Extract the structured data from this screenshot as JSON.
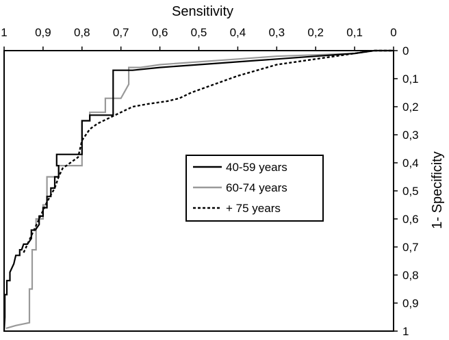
{
  "chart_data": {
    "type": "line",
    "title": "",
    "xlabel": "Sensitivity",
    "ylabel": "1- Specificity",
    "xlim": [
      1,
      0
    ],
    "ylim": [
      0,
      1
    ],
    "x_ticks": [
      "1",
      "0,9",
      "0,8",
      "0,7",
      "0,6",
      "0,5",
      "0,4",
      "0,3",
      "0,2",
      "0,1",
      "0"
    ],
    "y_ticks": [
      "0",
      "0,1",
      "0,2",
      "0,3",
      "0,4",
      "0,5",
      "0,6",
      "0,7",
      "0,8",
      "0,9",
      "1"
    ],
    "x_ticks_position": "top",
    "y_ticks_position": "right",
    "grid": false,
    "legend_position": "center-right",
    "series": [
      {
        "name": "40-59 years",
        "color": "#000000",
        "dash": "solid",
        "points": [
          [
            1.0,
            1.0
          ],
          [
            0.998,
            0.95
          ],
          [
            0.998,
            0.87
          ],
          [
            0.993,
            0.87
          ],
          [
            0.993,
            0.82
          ],
          [
            0.985,
            0.82
          ],
          [
            0.985,
            0.79
          ],
          [
            0.975,
            0.76
          ],
          [
            0.97,
            0.73
          ],
          [
            0.96,
            0.73
          ],
          [
            0.96,
            0.71
          ],
          [
            0.955,
            0.71
          ],
          [
            0.95,
            0.69
          ],
          [
            0.94,
            0.69
          ],
          [
            0.93,
            0.67
          ],
          [
            0.93,
            0.64
          ],
          [
            0.92,
            0.64
          ],
          [
            0.91,
            0.62
          ],
          [
            0.91,
            0.59
          ],
          [
            0.9,
            0.59
          ],
          [
            0.9,
            0.56
          ],
          [
            0.89,
            0.56
          ],
          [
            0.89,
            0.52
          ],
          [
            0.88,
            0.52
          ],
          [
            0.88,
            0.49
          ],
          [
            0.87,
            0.49
          ],
          [
            0.87,
            0.45
          ],
          [
            0.86,
            0.45
          ],
          [
            0.86,
            0.41
          ],
          [
            0.865,
            0.41
          ],
          [
            0.865,
            0.37
          ],
          [
            0.8,
            0.37
          ],
          [
            0.8,
            0.25
          ],
          [
            0.78,
            0.25
          ],
          [
            0.78,
            0.23
          ],
          [
            0.72,
            0.23
          ],
          [
            0.72,
            0.07
          ],
          [
            0.67,
            0.07
          ],
          [
            0.6,
            0.06
          ],
          [
            0.5,
            0.05
          ],
          [
            0.4,
            0.04
          ],
          [
            0.3,
            0.03
          ],
          [
            0.2,
            0.02
          ],
          [
            0.1,
            0.01
          ],
          [
            0.05,
            0.0
          ],
          [
            0.0,
            0.0
          ]
        ]
      },
      {
        "name": "60-74 years",
        "color": "#999999",
        "dash": "solid",
        "points": [
          [
            0.995,
            0.99
          ],
          [
            0.97,
            0.98
          ],
          [
            0.935,
            0.97
          ],
          [
            0.935,
            0.85
          ],
          [
            0.928,
            0.85
          ],
          [
            0.928,
            0.71
          ],
          [
            0.918,
            0.71
          ],
          [
            0.918,
            0.6
          ],
          [
            0.9,
            0.6
          ],
          [
            0.9,
            0.55
          ],
          [
            0.89,
            0.55
          ],
          [
            0.89,
            0.45
          ],
          [
            0.86,
            0.45
          ],
          [
            0.86,
            0.41
          ],
          [
            0.8,
            0.41
          ],
          [
            0.8,
            0.25
          ],
          [
            0.78,
            0.25
          ],
          [
            0.78,
            0.22
          ],
          [
            0.74,
            0.22
          ],
          [
            0.74,
            0.17
          ],
          [
            0.7,
            0.17
          ],
          [
            0.68,
            0.12
          ],
          [
            0.68,
            0.06
          ],
          [
            0.65,
            0.06
          ],
          [
            0.6,
            0.05
          ],
          [
            0.5,
            0.04
          ],
          [
            0.4,
            0.03
          ],
          [
            0.3,
            0.02
          ],
          [
            0.2,
            0.015
          ],
          [
            0.1,
            0.01
          ],
          [
            0.05,
            0.0
          ],
          [
            0.0,
            0.0
          ]
        ]
      },
      {
        "name": "+ 75 years",
        "color": "#000000",
        "dash": "dashed",
        "points": [
          [
            0.95,
            0.72
          ],
          [
            0.93,
            0.66
          ],
          [
            0.91,
            0.6
          ],
          [
            0.89,
            0.54
          ],
          [
            0.87,
            0.49
          ],
          [
            0.86,
            0.45
          ],
          [
            0.85,
            0.42
          ],
          [
            0.83,
            0.4
          ],
          [
            0.81,
            0.38
          ],
          [
            0.8,
            0.32
          ],
          [
            0.78,
            0.28
          ],
          [
            0.76,
            0.26
          ],
          [
            0.73,
            0.24
          ],
          [
            0.7,
            0.22
          ],
          [
            0.67,
            0.2
          ],
          [
            0.63,
            0.19
          ],
          [
            0.58,
            0.18
          ],
          [
            0.55,
            0.17
          ],
          [
            0.52,
            0.15
          ],
          [
            0.48,
            0.13
          ],
          [
            0.44,
            0.11
          ],
          [
            0.4,
            0.09
          ],
          [
            0.35,
            0.07
          ],
          [
            0.3,
            0.05
          ],
          [
            0.25,
            0.04
          ],
          [
            0.2,
            0.03
          ],
          [
            0.15,
            0.02
          ],
          [
            0.1,
            0.01
          ],
          [
            0.05,
            0.0
          ],
          [
            0.0,
            0.0
          ]
        ]
      }
    ]
  }
}
